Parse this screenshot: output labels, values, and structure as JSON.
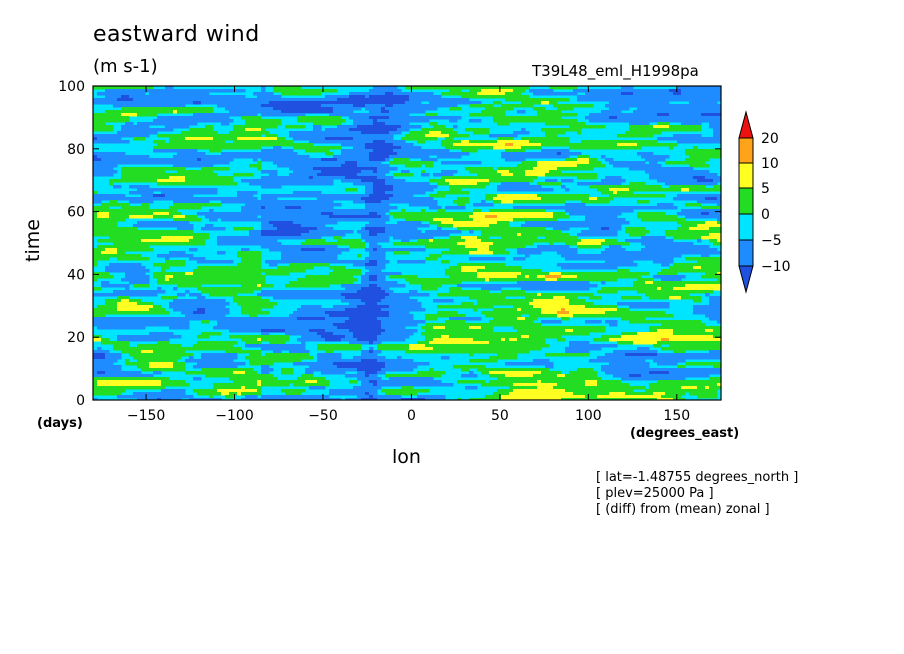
{
  "title": "eastward wind",
  "units": "(m s-1)",
  "run_id": "T39L48_eml_H1998pa",
  "notes": [
    "[ lat=-1.48755 degrees_north ]",
    "[ plev=25000 Pa ]",
    "[ (diff) from (mean) zonal ]"
  ],
  "colors": {
    "levels": [
      "#1e8cff",
      "#00e5ff",
      "#22dd22",
      "#ffff22",
      "#ffa31a",
      "#ee1111"
    ],
    "dark_blue": "#1f50e0"
  },
  "chart_data": {
    "type": "heatmap",
    "xlabel": "lon",
    "ylabel": "time",
    "x_unit": "(degrees_east)",
    "y_unit": "(days)",
    "xlim": [
      -180,
      175
    ],
    "ylim": [
      0,
      100
    ],
    "x_ticks": [
      -150,
      -100,
      -50,
      0,
      50,
      100,
      150
    ],
    "y_ticks": [
      0,
      20,
      40,
      60,
      80,
      100
    ],
    "colorbar": {
      "labels": [
        "20",
        "10",
        "5",
        "0",
        "-5",
        "-10"
      ],
      "levels": [
        -10,
        -5,
        0,
        5,
        10,
        20
      ]
    }
  }
}
